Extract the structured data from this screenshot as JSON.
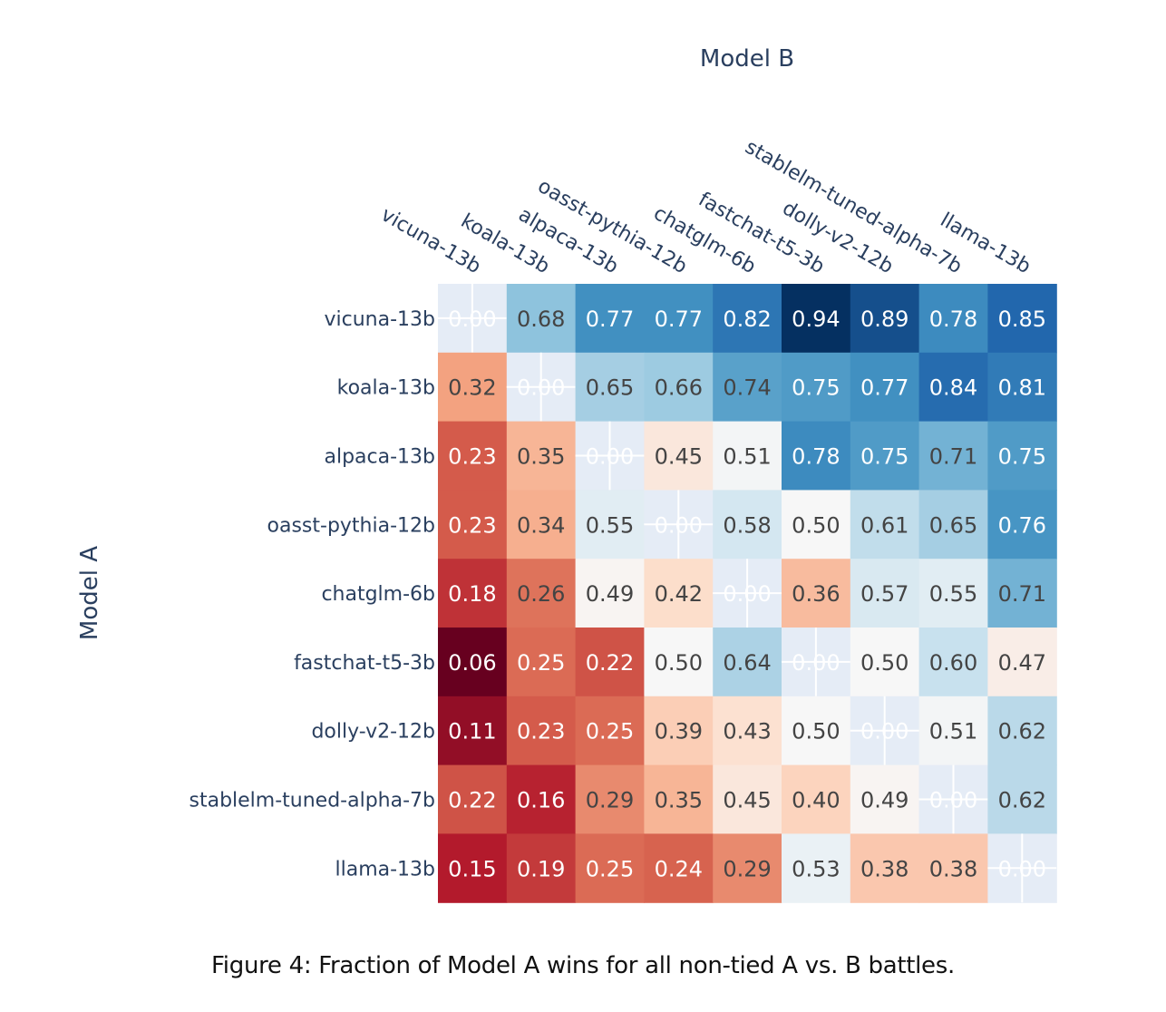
{
  "chart_data": {
    "type": "heatmap",
    "title": "",
    "xlabel": "Model B",
    "ylabel": "Model A",
    "x_categories": [
      "vicuna-13b",
      "koala-13b",
      "alpaca-13b",
      "oasst-pythia-12b",
      "chatglm-6b",
      "fastchat-t5-3b",
      "dolly-v2-12b",
      "stablelm-tuned-alpha-7b",
      "llama-13b"
    ],
    "y_categories": [
      "vicuna-13b",
      "koala-13b",
      "alpaca-13b",
      "oasst-pythia-12b",
      "chatglm-6b",
      "fastchat-t5-3b",
      "dolly-v2-12b",
      "stablelm-tuned-alpha-7b",
      "llama-13b"
    ],
    "values": [
      [
        null,
        0.68,
        0.77,
        0.77,
        0.82,
        0.94,
        0.89,
        0.78,
        0.85
      ],
      [
        0.32,
        null,
        0.65,
        0.66,
        0.74,
        0.75,
        0.77,
        0.84,
        0.81
      ],
      [
        0.23,
        0.35,
        null,
        0.45,
        0.51,
        0.78,
        0.75,
        0.71,
        0.75
      ],
      [
        0.23,
        0.34,
        0.55,
        null,
        0.58,
        0.5,
        0.61,
        0.65,
        0.76
      ],
      [
        0.18,
        0.26,
        0.49,
        0.42,
        null,
        0.36,
        0.57,
        0.55,
        0.71
      ],
      [
        0.06,
        0.25,
        0.22,
        0.5,
        0.64,
        null,
        0.5,
        0.6,
        0.47
      ],
      [
        0.11,
        0.23,
        0.25,
        0.39,
        0.43,
        0.5,
        null,
        0.51,
        0.62
      ],
      [
        0.22,
        0.16,
        0.29,
        0.35,
        0.45,
        0.4,
        0.49,
        null,
        0.62
      ],
      [
        0.15,
        0.19,
        0.25,
        0.24,
        0.29,
        0.53,
        0.38,
        0.38,
        null
      ]
    ],
    "missing_label": "0.00",
    "text_format": "2 decimals",
    "colorscale": "RdBu",
    "zrange": [
      0.06,
      0.94
    ],
    "colors": {
      "axis_text": "#2a3f5f",
      "missing_cell": "#e5ecf6",
      "grid": "#ffffff",
      "text_dark": "#444444",
      "text_light": "#ffffff"
    }
  },
  "caption": "Figure 4: Fraction of Model A wins for all non-tied A vs. B battles."
}
